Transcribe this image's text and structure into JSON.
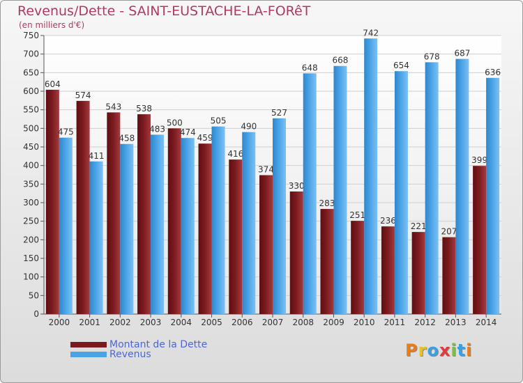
{
  "title": "Revenus/Dette - SAINT-EUSTACHE-LA-FORêT",
  "subtitle": "(en milliers d'€)",
  "logo_text": "Proxiti",
  "logo_colors": [
    "#e87d1e",
    "#e8c21e",
    "#3aa0e0",
    "#e03a3a",
    "#7ac143",
    "#3aa0e0",
    "#e87d1e"
  ],
  "colors": {
    "dette": "#7a1a1e",
    "revenus": "#4aa3e6",
    "title": "#b03a5f",
    "legend_text": "#4a66d8"
  },
  "chart_data": {
    "type": "bar",
    "categories": [
      "2000",
      "2001",
      "2002",
      "2003",
      "2004",
      "2005",
      "2006",
      "2007",
      "2008",
      "2009",
      "2010",
      "2011",
      "2012",
      "2013",
      "2014"
    ],
    "series": [
      {
        "name": "Montant de la Dette",
        "values": [
          604,
          574,
          543,
          538,
          500,
          459,
          416,
          374,
          330,
          283,
          251,
          236,
          221,
          207,
          399
        ]
      },
      {
        "name": "Revenus",
        "values": [
          475,
          411,
          458,
          483,
          474,
          505,
          490,
          527,
          648,
          668,
          742,
          654,
          678,
          687,
          636
        ]
      }
    ],
    "ylim": [
      0,
      750
    ],
    "yticks": [
      0,
      50,
      100,
      150,
      200,
      250,
      300,
      350,
      400,
      450,
      500,
      550,
      600,
      650,
      700,
      750
    ],
    "grid": true,
    "legend_position": "bottom-left"
  }
}
